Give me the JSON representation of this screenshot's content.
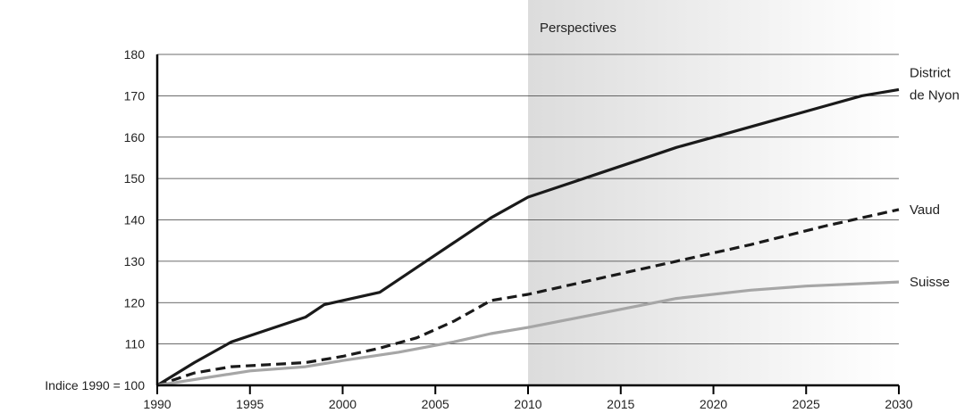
{
  "chart_data": {
    "type": "line",
    "title": "",
    "xlabel": "",
    "ylabel": "",
    "xlim": [
      1990,
      2030
    ],
    "ylim": [
      100,
      180
    ],
    "x_ticks": [
      1990,
      1995,
      2000,
      2005,
      2010,
      2015,
      2020,
      2025,
      2030
    ],
    "y_ticks": [
      100,
      110,
      120,
      130,
      140,
      150,
      160,
      170,
      180
    ],
    "y_tick_labels": [
      "Indice 1990 = 100",
      "110",
      "120",
      "130",
      "140",
      "150",
      "160",
      "170",
      "180"
    ],
    "grid": "horizontal",
    "projection_band": {
      "label": "Perspectives",
      "from": 2010,
      "to": 2030
    },
    "series": [
      {
        "name": "District de Nyon",
        "label_lines": [
          "District",
          "de Nyon"
        ],
        "style": "solid",
        "color": "#1a1a1a",
        "x": [
          1990,
          1992,
          1994,
          1996,
          1998,
          1999,
          2000,
          2002,
          2004,
          2006,
          2008,
          2010,
          2012,
          2014,
          2016,
          2018,
          2020,
          2022,
          2024,
          2026,
          2028,
          2030
        ],
        "y": [
          100,
          105.5,
          110.5,
          113.5,
          116.5,
          119.5,
          120.5,
          122.5,
          128.5,
          134.5,
          140.5,
          145.5,
          148.5,
          151.5,
          154.5,
          157.5,
          160,
          162.5,
          165,
          167.5,
          170,
          171.5
        ]
      },
      {
        "name": "Vaud",
        "label_lines": [
          "Vaud"
        ],
        "style": "dashed",
        "color": "#1a1a1a",
        "x": [
          1990,
          1992,
          1994,
          1996,
          1998,
          2000,
          2002,
          2004,
          2006,
          2008,
          2010,
          2014,
          2018,
          2022,
          2026,
          2030
        ],
        "y": [
          100,
          103,
          104.5,
          105,
          105.5,
          107,
          109,
          111.5,
          115.5,
          120.5,
          122,
          126,
          130,
          134,
          138.5,
          142.5
        ]
      },
      {
        "name": "Suisse",
        "label_lines": [
          "Suisse"
        ],
        "style": "solid",
        "color": "#a6a6a6",
        "x": [
          1990,
          1995,
          1998,
          2000,
          2003,
          2006,
          2008,
          2010,
          2014,
          2018,
          2022,
          2025,
          2030
        ],
        "y": [
          100,
          103.5,
          104.5,
          106,
          108,
          110.5,
          112.5,
          114,
          117.5,
          121,
          123,
          124,
          125
        ]
      }
    ]
  }
}
